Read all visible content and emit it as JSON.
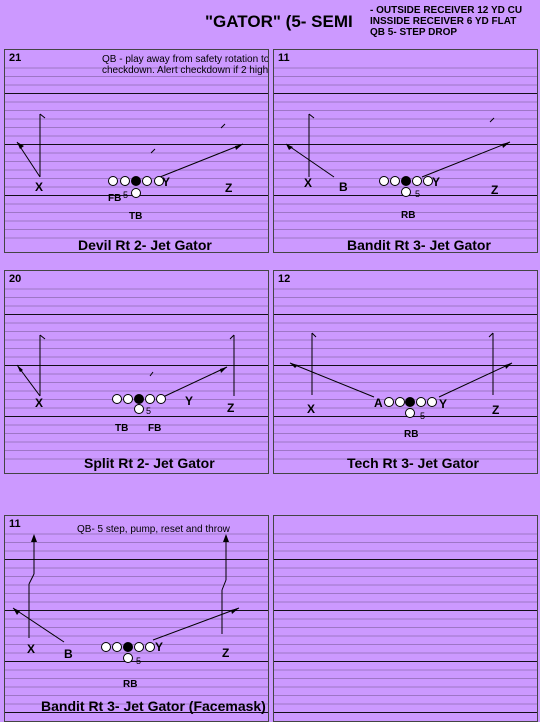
{
  "header": {
    "title": "\"GATOR\" (5- SEMI",
    "notes": [
      "- OUTSIDE RECEIVER 12 YD CU",
      "INSSIDE RECEIVER 6 YD FLAT",
      "QB 5- STEP DROP"
    ]
  },
  "panels": [
    {
      "number": "21",
      "caption": "Devil Rt 2- Jet Gator",
      "note_lines": [
        "QB          -                    play away from safety rotation to",
        "checkdown.  Alert checkdown if 2 high"
      ],
      "labels": {
        "x": "X",
        "y": "Y",
        "z": "Z",
        "back1": "FB",
        "back2": "TB",
        "center": "5"
      }
    },
    {
      "number": "11",
      "caption": "Bandit Rt 3- Jet Gator",
      "labels": {
        "x": "X",
        "y": "Y",
        "z": "Z",
        "b": "B",
        "back": "RB",
        "center": "5"
      }
    },
    {
      "number": "20",
      "caption": "Split Rt 2- Jet Gator",
      "labels": {
        "x": "X",
        "y": "Y",
        "z": "Z",
        "back1": "TB",
        "back2": "FB",
        "center": "5"
      }
    },
    {
      "number": "12",
      "caption": "Tech Rt 3- Jet Gator",
      "labels": {
        "x": "X",
        "y": "Y",
        "z": "Z",
        "a": "A",
        "back": "RB",
        "center": "5"
      }
    },
    {
      "number": "11",
      "caption": "Bandit Rt 3- Jet Gator (Facemask)",
      "note_lines": [
        "QB- 5 step, pump, reset and throw"
      ],
      "labels": {
        "x": "X",
        "y": "Y",
        "z": "Z",
        "b": "B",
        "back": "RB",
        "center": "5"
      }
    },
    {
      "number": "",
      "caption": ""
    }
  ],
  "colors": {
    "background": "#cc99ff",
    "lines": "#000000"
  }
}
